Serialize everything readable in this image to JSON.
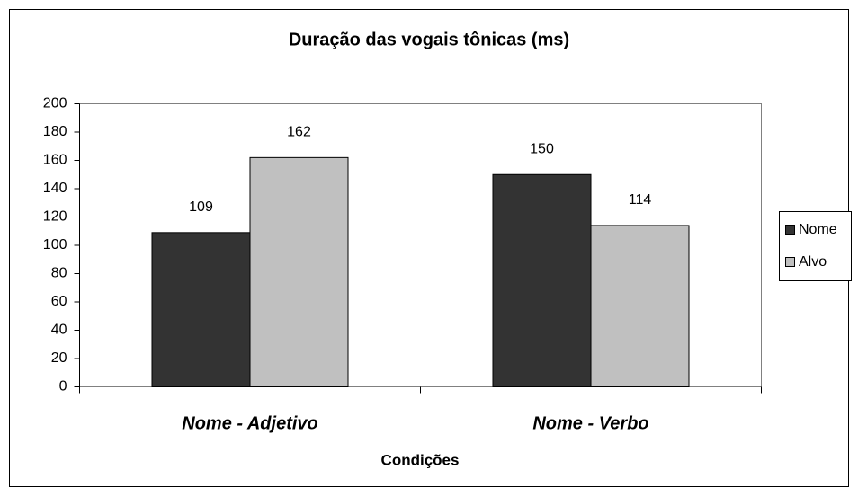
{
  "chart_data": {
    "type": "bar",
    "title": "Duração das vogais tônicas (ms)",
    "x_label": "Condições",
    "categories": [
      "Nome - Adjetivo",
      "Nome - Verbo"
    ],
    "series": [
      {
        "name": "Nome",
        "color": "#333333",
        "values": [
          109,
          150
        ]
      },
      {
        "name": "Alvo",
        "color": "#c0c0c0",
        "values": [
          162,
          114
        ]
      }
    ],
    "ylim": [
      0,
      200
    ],
    "yticks": [
      0,
      20,
      40,
      60,
      80,
      100,
      120,
      140,
      160,
      180,
      200
    ],
    "grid": false,
    "legend": "right"
  }
}
